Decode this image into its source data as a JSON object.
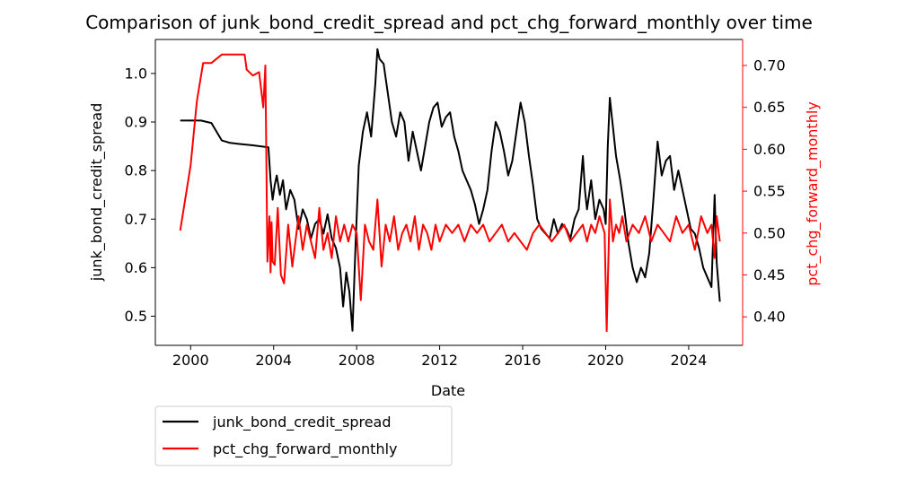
{
  "chart_data": {
    "type": "line",
    "title": "Comparison of junk_bond_credit_spread and pct_chg_forward_monthly over time",
    "xlabel": "Date",
    "ylabel_left": "junk_bond_credit_spread",
    "ylabel_right": "pct_chg_forward_monthly",
    "x_ticks": [
      "2000",
      "2004",
      "2008",
      "2012",
      "2016",
      "2020",
      "2024"
    ],
    "x_range": [
      1998.3,
      2026.6
    ],
    "y_left_ticks": [
      "0.5",
      "0.6",
      "0.7",
      "0.8",
      "0.9",
      "1.0"
    ],
    "y_left_range": [
      0.44,
      1.07
    ],
    "y_right_ticks": [
      "0.40",
      "0.45",
      "0.50",
      "0.55",
      "0.60",
      "0.65",
      "0.70"
    ],
    "y_right_range": [
      0.366,
      0.731
    ],
    "grid": false,
    "legend_position": "below-left",
    "colors": {
      "left_series": "#000000",
      "right_series": "#ff0000",
      "right_axis": "#ff0000"
    },
    "series": [
      {
        "name": "junk_bond_credit_spread",
        "axis": "left",
        "x": [
          1999.5,
          2000.5,
          2001.0,
          2001.5,
          2001.9,
          2002.3,
          2003.0,
          2003.75,
          2003.85,
          2003.95,
          2004.05,
          2004.15,
          2004.3,
          2004.45,
          2004.6,
          2004.8,
          2005.0,
          2005.2,
          2005.4,
          2005.6,
          2005.8,
          2006.0,
          2006.2,
          2006.4,
          2006.6,
          2006.8,
          2007.0,
          2007.2,
          2007.35,
          2007.5,
          2007.65,
          2007.8,
          2007.95,
          2008.1,
          2008.3,
          2008.5,
          2008.7,
          2008.9,
          2009.0,
          2009.1,
          2009.3,
          2009.5,
          2009.7,
          2009.9,
          2010.1,
          2010.3,
          2010.5,
          2010.7,
          2010.9,
          2011.1,
          2011.3,
          2011.5,
          2011.7,
          2011.9,
          2012.1,
          2012.3,
          2012.5,
          2012.7,
          2012.9,
          2013.1,
          2013.3,
          2013.5,
          2013.7,
          2013.9,
          2014.1,
          2014.3,
          2014.5,
          2014.7,
          2014.9,
          2015.1,
          2015.3,
          2015.5,
          2015.7,
          2015.9,
          2016.1,
          2016.3,
          2016.5,
          2016.7,
          2016.9,
          2017.1,
          2017.3,
          2017.5,
          2017.7,
          2017.9,
          2018.1,
          2018.3,
          2018.5,
          2018.7,
          2018.9,
          2019.0,
          2019.1,
          2019.3,
          2019.5,
          2019.7,
          2019.9,
          2020.0,
          2020.1,
          2020.2,
          2020.3,
          2020.5,
          2020.7,
          2020.9,
          2021.1,
          2021.3,
          2021.5,
          2021.7,
          2021.9,
          2022.1,
          2022.3,
          2022.5,
          2022.7,
          2022.9,
          2023.1,
          2023.3,
          2023.5,
          2023.7,
          2023.9,
          2024.1,
          2024.3,
          2024.5,
          2024.7,
          2024.9,
          2025.1,
          2025.25,
          2025.35,
          2025.5
        ],
        "values": [
          0.903,
          0.903,
          0.898,
          0.862,
          0.857,
          0.855,
          0.852,
          0.848,
          0.78,
          0.74,
          0.77,
          0.79,
          0.75,
          0.78,
          0.72,
          0.76,
          0.74,
          0.68,
          0.72,
          0.7,
          0.66,
          0.69,
          0.7,
          0.67,
          0.71,
          0.66,
          0.64,
          0.6,
          0.52,
          0.59,
          0.55,
          0.47,
          0.65,
          0.81,
          0.88,
          0.92,
          0.87,
          0.98,
          1.05,
          1.03,
          1.02,
          0.96,
          0.9,
          0.87,
          0.92,
          0.9,
          0.82,
          0.88,
          0.84,
          0.8,
          0.85,
          0.9,
          0.93,
          0.94,
          0.89,
          0.91,
          0.92,
          0.87,
          0.84,
          0.8,
          0.78,
          0.76,
          0.73,
          0.69,
          0.72,
          0.76,
          0.84,
          0.9,
          0.88,
          0.84,
          0.79,
          0.82,
          0.88,
          0.94,
          0.9,
          0.83,
          0.77,
          0.7,
          0.68,
          0.67,
          0.66,
          0.7,
          0.67,
          0.69,
          0.68,
          0.66,
          0.7,
          0.72,
          0.83,
          0.76,
          0.72,
          0.78,
          0.7,
          0.74,
          0.72,
          0.69,
          0.85,
          0.95,
          0.91,
          0.83,
          0.78,
          0.72,
          0.65,
          0.6,
          0.57,
          0.6,
          0.58,
          0.63,
          0.74,
          0.86,
          0.79,
          0.82,
          0.83,
          0.76,
          0.8,
          0.76,
          0.72,
          0.68,
          0.67,
          0.64,
          0.6,
          0.58,
          0.56,
          0.75,
          0.61,
          0.53
        ]
      },
      {
        "name": "pct_chg_forward_monthly",
        "axis": "right",
        "x": [
          1999.5,
          2000.0,
          2000.3,
          2000.6,
          2001.0,
          2001.5,
          2001.8,
          2002.6,
          2002.7,
          2003.0,
          2003.3,
          2003.5,
          2003.6,
          2003.7,
          2003.8,
          2003.85,
          2003.9,
          2003.95,
          2004.05,
          2004.2,
          2004.35,
          2004.5,
          2004.7,
          2004.9,
          2005.0,
          2005.2,
          2005.4,
          2005.6,
          2005.8,
          2006.0,
          2006.2,
          2006.4,
          2006.6,
          2006.8,
          2007.0,
          2007.2,
          2007.4,
          2007.6,
          2007.8,
          2008.0,
          2008.2,
          2008.4,
          2008.6,
          2008.8,
          2009.0,
          2009.2,
          2009.4,
          2009.6,
          2009.8,
          2010.0,
          2010.2,
          2010.4,
          2010.6,
          2010.8,
          2011.0,
          2011.2,
          2011.4,
          2011.6,
          2011.8,
          2012.0,
          2012.3,
          2012.6,
          2012.9,
          2013.2,
          2013.5,
          2013.8,
          2014.1,
          2014.4,
          2014.7,
          2015.0,
          2015.3,
          2015.6,
          2015.9,
          2016.2,
          2016.5,
          2016.8,
          2017.1,
          2017.4,
          2017.7,
          2018.0,
          2018.3,
          2018.6,
          2018.9,
          2019.1,
          2019.3,
          2019.5,
          2019.7,
          2019.95,
          2020.05,
          2020.2,
          2020.35,
          2020.5,
          2020.65,
          2020.8,
          2021.0,
          2021.3,
          2021.6,
          2021.9,
          2022.2,
          2022.5,
          2022.8,
          2023.1,
          2023.4,
          2023.7,
          2024.0,
          2024.3,
          2024.6,
          2024.9,
          2025.1,
          2025.25,
          2025.35,
          2025.5
        ],
        "values": [
          0.503,
          0.581,
          0.657,
          0.703,
          0.703,
          0.713,
          0.713,
          0.713,
          0.695,
          0.688,
          0.692,
          0.65,
          0.7,
          0.466,
          0.52,
          0.453,
          0.513,
          0.466,
          0.462,
          0.53,
          0.45,
          0.44,
          0.51,
          0.46,
          0.48,
          0.52,
          0.48,
          0.51,
          0.49,
          0.47,
          0.53,
          0.48,
          0.5,
          0.47,
          0.52,
          0.49,
          0.51,
          0.49,
          0.51,
          0.5,
          0.42,
          0.51,
          0.49,
          0.48,
          0.54,
          0.46,
          0.51,
          0.49,
          0.52,
          0.48,
          0.5,
          0.51,
          0.49,
          0.52,
          0.48,
          0.51,
          0.5,
          0.48,
          0.51,
          0.49,
          0.51,
          0.5,
          0.51,
          0.49,
          0.51,
          0.5,
          0.51,
          0.49,
          0.5,
          0.51,
          0.49,
          0.5,
          0.49,
          0.48,
          0.5,
          0.51,
          0.5,
          0.49,
          0.5,
          0.51,
          0.49,
          0.5,
          0.51,
          0.49,
          0.51,
          0.5,
          0.52,
          0.5,
          0.383,
          0.54,
          0.49,
          0.51,
          0.5,
          0.52,
          0.49,
          0.51,
          0.5,
          0.52,
          0.49,
          0.51,
          0.5,
          0.49,
          0.52,
          0.5,
          0.51,
          0.48,
          0.52,
          0.5,
          0.51,
          0.47,
          0.52,
          0.49
        ]
      }
    ]
  }
}
